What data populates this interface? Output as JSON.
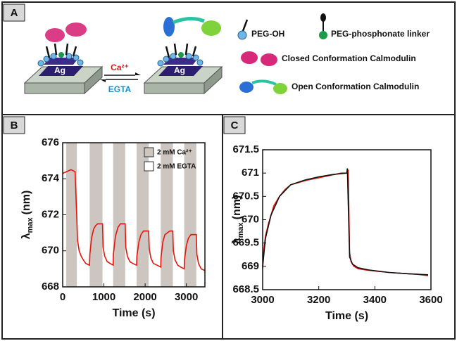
{
  "panels": {
    "a": {
      "label": "A",
      "ag_left": "Ag",
      "ag_right": "Ag",
      "forward": "Ca²⁺",
      "reverse": "EGTA",
      "legend": [
        "PEG-OH",
        "PEG-phosphonate linker",
        "Closed Conformation Calmodulin",
        "Open Conformation Calmodulin"
      ]
    },
    "b": {
      "label": "B"
    },
    "c": {
      "label": "C"
    }
  },
  "chart_data": [
    {
      "type": "line",
      "x_label": "Time (s)",
      "y_label": {
        "symbol": "λ",
        "subscript": "max",
        "unit": "(nm)"
      },
      "xlim": [
        0,
        3450
      ],
      "xticks": [
        0,
        1000,
        2000,
        3000
      ],
      "ylim": [
        668,
        676
      ],
      "yticks": [
        668,
        670,
        672,
        674,
        676
      ],
      "shaded_regions": [
        [
          86,
          345
        ],
        [
          655,
          966
        ],
        [
          1224,
          1517
        ],
        [
          1793,
          2086
        ],
        [
          2379,
          2672
        ],
        [
          2948,
          3241
        ]
      ],
      "legend": [
        {
          "name": "2 mM Ca²⁺",
          "color": "#cdc5bf"
        },
        {
          "name": "2 mM EGTA",
          "color": "#ffffff"
        }
      ],
      "series": [
        {
          "color": "#e8140c",
          "x": [
            0,
            100,
            200,
            300,
            340,
            360,
            400,
            450,
            500,
            560,
            650,
            660,
            700,
            750,
            800,
            850,
            900,
            966,
            980,
            1020,
            1080,
            1150,
            1224,
            1230,
            1280,
            1340,
            1400,
            1460,
            1517,
            1530,
            1570,
            1630,
            1700,
            1793,
            1800,
            1850,
            1900,
            1960,
            2020,
            2086,
            2100,
            2140,
            2200,
            2290,
            2379,
            2385,
            2430,
            2480,
            2540,
            2600,
            2672,
            2685,
            2725,
            2790,
            2860,
            2948,
            2955,
            3000,
            3050,
            3110,
            3180,
            3241,
            3255,
            3295,
            3360,
            3450
          ],
          "values": [
            674.3,
            674.4,
            674.5,
            674.4,
            672.0,
            670.6,
            670.0,
            669.7,
            669.5,
            669.3,
            669.2,
            669.8,
            670.7,
            671.2,
            671.4,
            671.5,
            671.5,
            671.5,
            670.2,
            669.7,
            669.4,
            669.3,
            669.2,
            669.8,
            670.8,
            671.3,
            671.5,
            671.5,
            671.5,
            670.2,
            669.7,
            669.4,
            669.3,
            669.2,
            669.7,
            670.5,
            670.9,
            671.1,
            671.1,
            671.1,
            670.1,
            669.6,
            669.3,
            669.2,
            669.1,
            669.6,
            670.5,
            670.9,
            671.0,
            671.1,
            671.1,
            670.0,
            669.5,
            669.2,
            669.1,
            669.0,
            669.5,
            670.3,
            670.7,
            670.9,
            670.9,
            670.9,
            669.8,
            669.3,
            669.0,
            668.9
          ]
        }
      ]
    },
    {
      "type": "line",
      "x_label": "Time (s)",
      "y_label": {
        "symbol": "λ",
        "subscript": "max",
        "unit": "(nm)"
      },
      "xlim": [
        3000,
        3600
      ],
      "xticks": [
        3000,
        3200,
        3400,
        3600
      ],
      "ylim": [
        668.5,
        671.5
      ],
      "yticks": [
        668.5,
        669,
        669.5,
        670,
        670.5,
        671,
        671.5
      ],
      "series": [
        {
          "color": "#e8140c",
          "x": [
            3000,
            3005,
            3010,
            3020,
            3030,
            3040,
            3060,
            3080,
            3100,
            3130,
            3160,
            3200,
            3240,
            3280,
            3300,
            3305,
            3310,
            3315,
            3325,
            3340,
            3370,
            3400,
            3450,
            3500,
            3550,
            3590
          ],
          "values": [
            668.95,
            669.4,
            669.65,
            669.9,
            670.1,
            670.3,
            670.5,
            670.65,
            670.75,
            670.8,
            670.85,
            670.9,
            670.95,
            671.0,
            671.0,
            671.05,
            669.3,
            669.1,
            669.0,
            668.95,
            668.92,
            668.9,
            668.87,
            668.85,
            668.83,
            668.8
          ]
        },
        {
          "color": "#111111",
          "x": [
            3000,
            3010,
            3030,
            3060,
            3100,
            3150,
            3200,
            3250,
            3300,
            3302,
            3310,
            3320,
            3340,
            3380,
            3450,
            3520,
            3590
          ],
          "values": [
            669.0,
            669.6,
            670.1,
            670.5,
            670.75,
            670.85,
            670.92,
            670.97,
            671.0,
            671.1,
            669.2,
            669.05,
            668.97,
            668.92,
            668.87,
            668.84,
            668.82
          ]
        }
      ]
    }
  ]
}
